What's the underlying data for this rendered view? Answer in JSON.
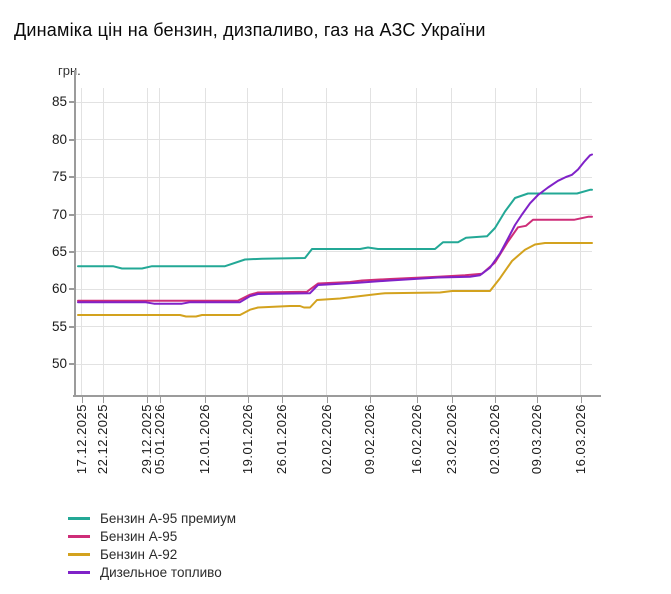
{
  "title": "Динаміка цін на бензин, дизпаливо, газ на АЗС України",
  "chart_data": {
    "type": "line",
    "title": "Динаміка цін на бензин, дизпаливо, газ на АЗС України",
    "xlabel": "",
    "ylabel": "грн.",
    "grid": true,
    "legend_position": "bottom-left",
    "ylim": [
      45.93,
      86.87
    ],
    "y_ticks": [
      85,
      80,
      75,
      70,
      65,
      60,
      55,
      50
    ],
    "x_ticks": [
      {
        "label": "17.12.2025",
        "f": 0.0135
      },
      {
        "label": "22.12.2025",
        "f": 0.0542
      },
      {
        "label": "29.12.2025",
        "f": 0.1393
      },
      {
        "label": "05.01.2026",
        "f": 0.1644
      },
      {
        "label": "12.01.2026",
        "f": 0.2515
      },
      {
        "label": "19.01.2026",
        "f": 0.3346
      },
      {
        "label": "26.01.2026",
        "f": 0.4004
      },
      {
        "label": "02.02.2026",
        "f": 0.4874
      },
      {
        "label": "09.02.2026",
        "f": 0.5706
      },
      {
        "label": "16.02.2026",
        "f": 0.6615
      },
      {
        "label": "23.02.2026",
        "f": 0.7292
      },
      {
        "label": "02.03.2026",
        "f": 0.8124
      },
      {
        "label": "09.03.2026",
        "f": 0.8936
      },
      {
        "label": "16.03.2026",
        "f": 0.9787
      }
    ],
    "point_format": [
      "date",
      "value_uah",
      "axis_fraction"
    ],
    "series": [
      {
        "id": "a95-premium",
        "name": "Бензин А-95 премиум",
        "color": "#23A896",
        "points": [
          [
            "16.12.2025",
            63.1,
            0.0058
          ],
          [
            "24.12.2025",
            63.1,
            0.0735
          ],
          [
            "26.12.2025",
            62.8,
            0.0909
          ],
          [
            "28.12.2025",
            62.8,
            0.1296
          ],
          [
            "31.12.2025",
            63.1,
            0.1489
          ],
          [
            "15.01.2026",
            63.1,
            0.2901
          ],
          [
            "19.01.2026",
            64.0,
            0.3288
          ],
          [
            "22.01.2026",
            64.1,
            0.3617
          ],
          [
            "31.01.2026",
            64.2,
            0.4449
          ],
          [
            "01.02.2026",
            65.4,
            0.4584
          ],
          [
            "07.02.2026",
            65.4,
            0.5513
          ],
          [
            "09.02.2026",
            65.6,
            0.5667
          ],
          [
            "11.02.2026",
            65.4,
            0.5861
          ],
          [
            "19.02.2026",
            65.4,
            0.6963
          ],
          [
            "21.02.2026",
            66.3,
            0.7118
          ],
          [
            "24.02.2026",
            66.3,
            0.7408
          ],
          [
            "26.02.2026",
            66.9,
            0.7563
          ],
          [
            "28.02.2026",
            67.1,
            0.7969
          ],
          [
            "02.03.2026",
            68.2,
            0.8124
          ],
          [
            "04.03.2026",
            70.4,
            0.8317
          ],
          [
            "05.03.2026",
            72.2,
            0.8511
          ],
          [
            "08.03.2026",
            72.8,
            0.8762
          ],
          [
            "15.03.2026",
            72.8,
            0.971
          ],
          [
            "17.03.2026",
            73.3,
            0.9961
          ],
          [
            "18.03.2026",
            73.3,
            1.0
          ]
        ]
      },
      {
        "id": "a95",
        "name": "Бензин А-95",
        "color": "#CE2D78",
        "points": [
          [
            "16.12.2025",
            58.5,
            0.0058
          ],
          [
            "18.01.2026",
            58.5,
            0.3153
          ],
          [
            "20.01.2026",
            59.3,
            0.3385
          ],
          [
            "21.01.2026",
            59.6,
            0.354
          ],
          [
            "31.01.2026",
            59.7,
            0.4487
          ],
          [
            "02.02.2026",
            60.8,
            0.47
          ],
          [
            "06.02.2026",
            61.0,
            0.5319
          ],
          [
            "08.02.2026",
            61.2,
            0.5551
          ],
          [
            "12.02.2026",
            61.4,
            0.6093
          ],
          [
            "20.02.2026",
            61.7,
            0.7021
          ],
          [
            "25.02.2026",
            61.9,
            0.7544
          ],
          [
            "28.02.2026",
            62.1,
            0.7872
          ],
          [
            "02.03.2026",
            63.6,
            0.8124
          ],
          [
            "04.03.2026",
            66.4,
            0.8375
          ],
          [
            "06.03.2026",
            68.3,
            0.8569
          ],
          [
            "07.03.2026",
            68.5,
            0.8723
          ],
          [
            "09.03.2026",
            69.3,
            0.8859
          ],
          [
            "15.03.2026",
            69.3,
            0.9652
          ],
          [
            "17.03.2026",
            69.7,
            0.9923
          ],
          [
            "18.03.2026",
            69.7,
            1.0
          ]
        ]
      },
      {
        "id": "a92",
        "name": "Бензин А-92",
        "color": "#D3A21E",
        "points": [
          [
            "16.12.2025",
            56.6,
            0.0058
          ],
          [
            "08.01.2026",
            56.6,
            0.2031
          ],
          [
            "09.01.2026",
            56.4,
            0.2147
          ],
          [
            "11.01.2026",
            56.4,
            0.234
          ],
          [
            "12.01.2026",
            56.6,
            0.2456
          ],
          [
            "18.01.2026",
            56.6,
            0.3191
          ],
          [
            "20.01.2026",
            57.3,
            0.3385
          ],
          [
            "21.01.2026",
            57.6,
            0.354
          ],
          [
            "27.01.2026",
            57.8,
            0.4159
          ],
          [
            "29.01.2026",
            57.8,
            0.4352
          ],
          [
            "30.01.2026",
            57.6,
            0.443
          ],
          [
            "31.01.2026",
            57.6,
            0.4545
          ],
          [
            "02.02.2026",
            58.6,
            0.4681
          ],
          [
            "05.02.2026",
            58.8,
            0.5126
          ],
          [
            "08.02.2026",
            59.2,
            0.5609
          ],
          [
            "11.02.2026",
            59.5,
            0.5996
          ],
          [
            "21.02.2026",
            59.6,
            0.706
          ],
          [
            "23.02.2026",
            59.8,
            0.7292
          ],
          [
            "01.03.2026",
            59.8,
            0.8027
          ],
          [
            "03.03.2026",
            61.5,
            0.8221
          ],
          [
            "05.03.2026",
            63.8,
            0.8453
          ],
          [
            "07.03.2026",
            65.3,
            0.8704
          ],
          [
            "09.03.2026",
            66.0,
            0.8897
          ],
          [
            "10.03.2026",
            66.2,
            0.9091
          ],
          [
            "18.03.2026",
            66.2,
            1.0
          ]
        ]
      },
      {
        "id": "diesel",
        "name": "Дизельное топливо",
        "color": "#8022C8",
        "points": [
          [
            "16.12.2025",
            58.3,
            0.0058
          ],
          [
            "29.12.2025",
            58.3,
            0.1354
          ],
          [
            "31.12.2025",
            58.1,
            0.1528
          ],
          [
            "08.01.2026",
            58.1,
            0.207
          ],
          [
            "10.01.2026",
            58.3,
            0.2224
          ],
          [
            "18.01.2026",
            58.3,
            0.3191
          ],
          [
            "20.01.2026",
            59.1,
            0.3385
          ],
          [
            "21.01.2026",
            59.4,
            0.354
          ],
          [
            "31.01.2026",
            59.5,
            0.4545
          ],
          [
            "02.02.2026",
            60.6,
            0.47
          ],
          [
            "07.02.2026",
            60.9,
            0.5474
          ],
          [
            "12.02.2026",
            61.2,
            0.6093
          ],
          [
            "20.02.2026",
            61.6,
            0.7021
          ],
          [
            "26.02.2026",
            61.7,
            0.764
          ],
          [
            "28.02.2026",
            61.9,
            0.7833
          ],
          [
            "01.03.2026",
            62.9,
            0.8027
          ],
          [
            "03.03.2026",
            64.8,
            0.8221
          ],
          [
            "04.03.2026",
            66.8,
            0.8375
          ],
          [
            "05.03.2026",
            68.6,
            0.8511
          ],
          [
            "06.03.2026",
            70.0,
            0.8646
          ],
          [
            "08.03.2026",
            71.5,
            0.8801
          ],
          [
            "09.03.2026",
            72.6,
            0.8956
          ],
          [
            "11.03.2026",
            73.6,
            0.9149
          ],
          [
            "12.03.2026",
            74.5,
            0.9342
          ],
          [
            "13.03.2026",
            75.0,
            0.9497
          ],
          [
            "14.03.2026",
            75.3,
            0.9613
          ],
          [
            "15.03.2026",
            76.0,
            0.9729
          ],
          [
            "16.03.2026",
            77.0,
            0.9845
          ],
          [
            "17.03.2026",
            77.9,
            0.9961
          ],
          [
            "18.03.2026",
            78.0,
            1.0
          ]
        ]
      }
    ]
  }
}
